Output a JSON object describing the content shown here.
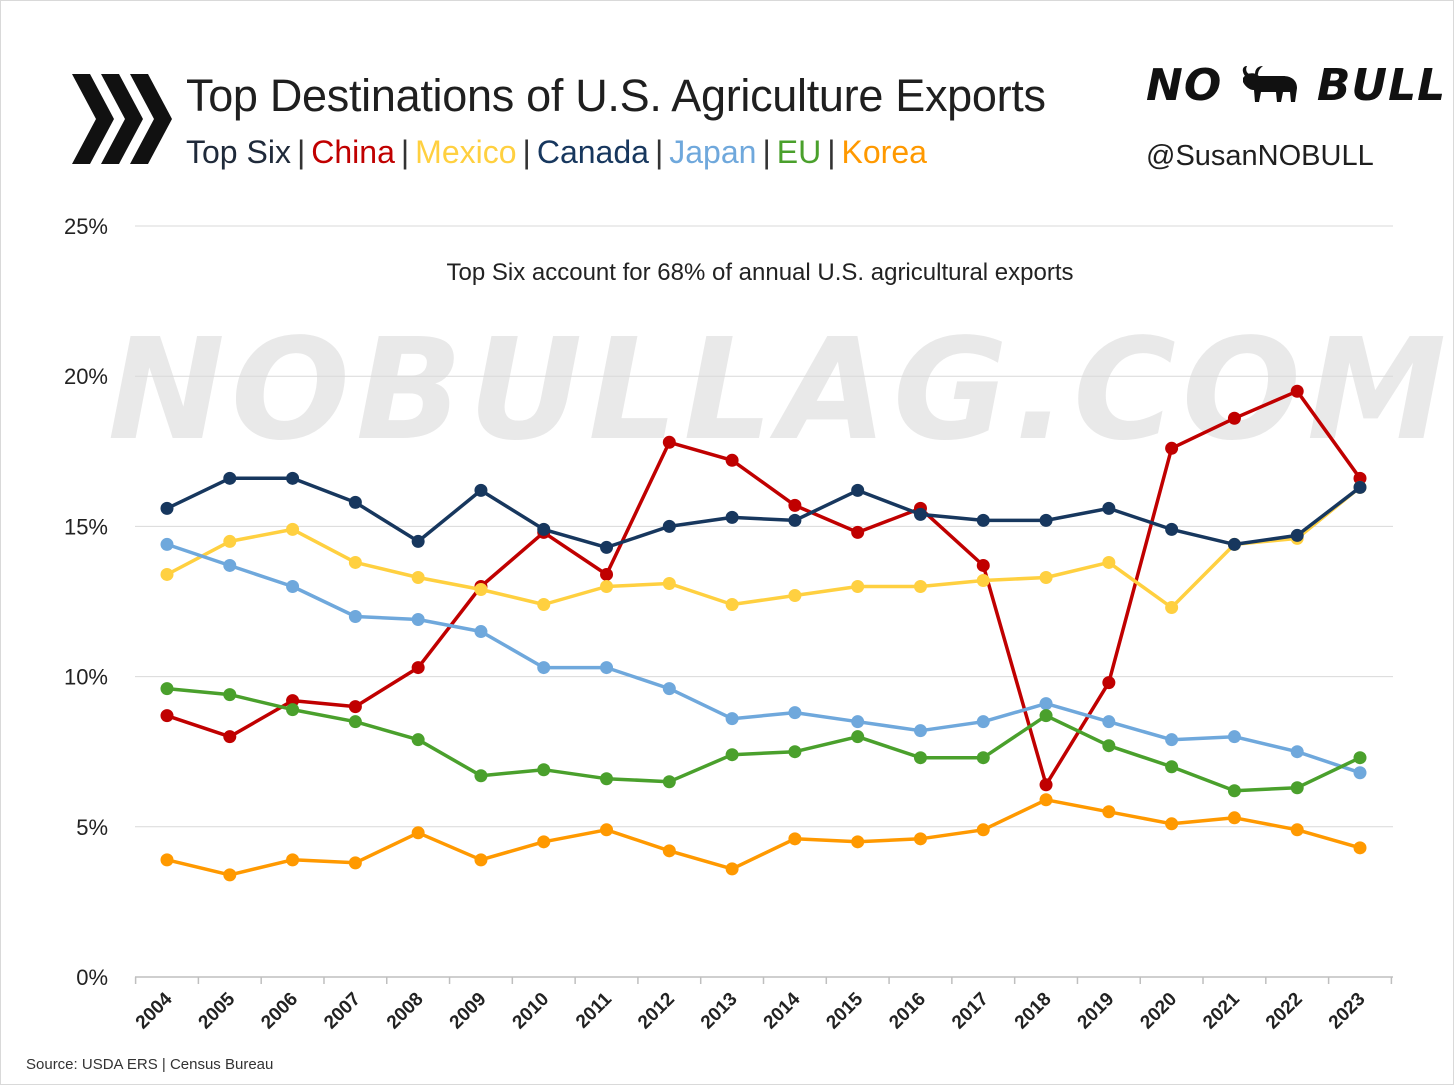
{
  "header": {
    "title": "Top Destinations of U.S. Agriculture Exports",
    "subtitle_parts": [
      {
        "text": "Top Six",
        "color": "#1f2a3a"
      },
      {
        "text": "China",
        "color": "#c00000"
      },
      {
        "text": "Mexico",
        "color": "#ffd040"
      },
      {
        "text": "Canada",
        "color": "#17375e"
      },
      {
        "text": "Japan",
        "color": "#6fa8dc"
      },
      {
        "text": "EU",
        "color": "#4aa02c"
      },
      {
        "text": "Korea",
        "color": "#ff9900"
      }
    ],
    "separator": "|",
    "logo_text": "NO BULL",
    "handle": "@SusanNOBULL"
  },
  "watermark": "NOBULLAG.COM",
  "source": "Source: USDA ERS | Census Bureau",
  "chart_data": {
    "type": "line",
    "annotation": "Top Six account for 68% of annual U.S. agricultural exports",
    "x": [
      "2004",
      "2005",
      "2006",
      "2007",
      "2008",
      "2009",
      "2010",
      "2011",
      "2012",
      "2013",
      "2014",
      "2015",
      "2016",
      "2017",
      "2018",
      "2019",
      "2020",
      "2021",
      "2022",
      "2023"
    ],
    "ylim": [
      0,
      25
    ],
    "yticks": [
      0,
      5,
      10,
      15,
      20,
      25
    ],
    "ytick_labels": [
      "0%",
      "5%",
      "10%",
      "15%",
      "20%",
      "25%"
    ],
    "grid": true,
    "series": [
      {
        "name": "China",
        "color": "#c00000",
        "values": [
          8.7,
          8.0,
          9.2,
          9.0,
          10.3,
          13.0,
          14.8,
          13.4,
          17.8,
          17.2,
          15.7,
          14.8,
          15.6,
          13.7,
          6.4,
          9.8,
          17.6,
          18.6,
          19.5,
          16.6
        ]
      },
      {
        "name": "Mexico",
        "color": "#ffd040",
        "values": [
          13.4,
          14.5,
          14.9,
          13.8,
          13.3,
          12.9,
          12.4,
          13.0,
          13.1,
          12.4,
          12.7,
          13.0,
          13.0,
          13.2,
          13.3,
          13.8,
          12.3,
          14.4,
          14.6,
          16.3
        ]
      },
      {
        "name": "Canada",
        "color": "#17375e",
        "values": [
          15.6,
          16.6,
          16.6,
          15.8,
          14.5,
          16.2,
          14.9,
          14.3,
          15.0,
          15.3,
          15.2,
          16.2,
          15.4,
          15.2,
          15.2,
          15.6,
          14.9,
          14.4,
          14.7,
          16.3
        ]
      },
      {
        "name": "Japan",
        "color": "#6fa8dc",
        "values": [
          14.4,
          13.7,
          13.0,
          12.0,
          11.9,
          11.5,
          10.3,
          10.3,
          9.6,
          8.6,
          8.8,
          8.5,
          8.2,
          8.5,
          9.1,
          8.5,
          7.9,
          8.0,
          7.5,
          6.8
        ]
      },
      {
        "name": "EU",
        "color": "#4aa02c",
        "values": [
          9.6,
          9.4,
          8.9,
          8.5,
          7.9,
          6.7,
          6.9,
          6.6,
          6.5,
          7.4,
          7.5,
          8.0,
          7.3,
          7.3,
          8.7,
          7.7,
          7.0,
          6.2,
          6.3,
          7.3
        ]
      },
      {
        "name": "Korea",
        "color": "#ff9900",
        "values": [
          3.9,
          3.4,
          3.9,
          3.8,
          4.8,
          3.9,
          4.5,
          4.9,
          4.2,
          3.6,
          4.6,
          4.5,
          4.6,
          4.9,
          5.9,
          5.5,
          5.1,
          5.3,
          4.9,
          4.3
        ]
      }
    ]
  }
}
